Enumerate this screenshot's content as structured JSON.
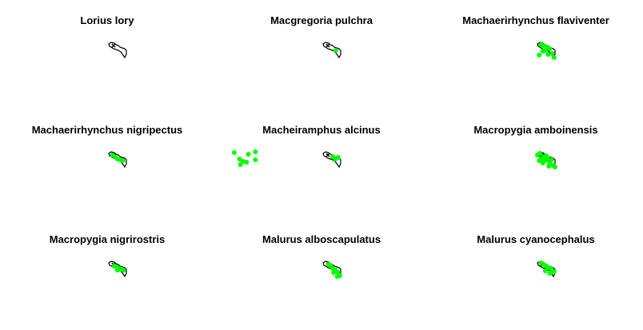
{
  "colors": {
    "background": "#ffffff",
    "outline": "#000000",
    "occurrence": "#00ff00"
  },
  "panels": [
    {
      "title": "Lorius lory",
      "points": []
    },
    {
      "title": "Macgregoria pulchra",
      "points": [
        [
          0.72,
          0.5
        ]
      ]
    },
    {
      "title": "Machaerirhynchus flaviventer",
      "points": [
        [
          0.2,
          0.15
        ],
        [
          0.35,
          0.2
        ],
        [
          0.55,
          0.3
        ],
        [
          0.7,
          0.4
        ],
        [
          0.3,
          0.55
        ],
        [
          0.85,
          0.7
        ],
        [
          0.1,
          0.8
        ],
        [
          0.95,
          0.95
        ],
        [
          0.6,
          0.75
        ],
        [
          0.45,
          0.5
        ]
      ]
    },
    {
      "title": "Machaerirhynchus nigripectus",
      "points": [
        [
          0.2,
          0.2
        ],
        [
          0.35,
          0.3
        ],
        [
          0.5,
          0.45
        ],
        [
          0.65,
          0.5
        ],
        [
          0.8,
          0.55
        ]
      ]
    },
    {
      "title": "Macheiramphus alcinus",
      "points": [
        [
          -5.05,
          0.05
        ],
        [
          -4.75,
          0.45
        ],
        [
          -4.55,
          0.6
        ],
        [
          -4.7,
          0.8
        ],
        [
          -4.25,
          0.15
        ],
        [
          -4.35,
          0.65
        ],
        [
          -3.85,
          0.0
        ],
        [
          -3.85,
          0.5
        ],
        [
          0.55,
          0.3
        ],
        [
          0.7,
          0.45
        ],
        [
          0.85,
          0.35
        ]
      ]
    },
    {
      "title": "Macropygia amboinensis",
      "points": [
        [
          0.0,
          0.2
        ],
        [
          0.15,
          0.1
        ],
        [
          0.2,
          0.45
        ],
        [
          0.35,
          0.3
        ],
        [
          0.1,
          0.55
        ],
        [
          0.5,
          0.25
        ],
        [
          0.45,
          0.55
        ],
        [
          0.6,
          0.4
        ],
        [
          0.7,
          0.7
        ],
        [
          0.8,
          0.5
        ],
        [
          0.9,
          0.85
        ],
        [
          1.0,
          0.95
        ],
        [
          0.65,
          0.9
        ],
        [
          0.3,
          0.7
        ]
      ]
    },
    {
      "title": "Macropygia nigrirostris",
      "points": [
        [
          0.3,
          0.3
        ],
        [
          0.45,
          0.35
        ],
        [
          0.6,
          0.45
        ],
        [
          0.75,
          0.5
        ],
        [
          0.85,
          0.55
        ],
        [
          0.5,
          0.55
        ]
      ]
    },
    {
      "title": "Malurus alboscapulatus",
      "points": [
        [
          0.3,
          0.2
        ],
        [
          0.45,
          0.3
        ],
        [
          0.55,
          0.45
        ],
        [
          0.7,
          0.55
        ],
        [
          0.85,
          0.7
        ],
        [
          0.95,
          0.9
        ],
        [
          0.8,
          0.95
        ],
        [
          0.6,
          0.7
        ]
      ]
    },
    {
      "title": "Malurus cyanocephalus",
      "points": [
        [
          0.2,
          0.1
        ],
        [
          0.35,
          0.2
        ],
        [
          0.5,
          0.3
        ],
        [
          0.65,
          0.4
        ],
        [
          0.8,
          0.5
        ],
        [
          0.7,
          0.75
        ],
        [
          0.45,
          0.6
        ],
        [
          0.95,
          0.65
        ]
      ]
    }
  ]
}
